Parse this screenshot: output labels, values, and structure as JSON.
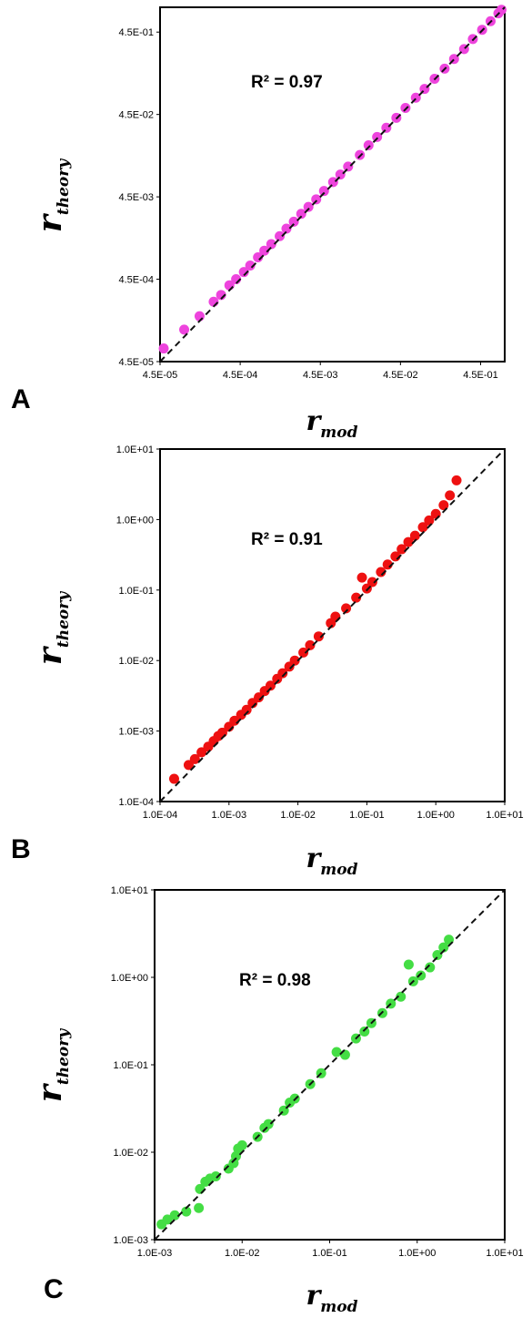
{
  "chart_data": [
    {
      "type": "scatter",
      "panel": "A",
      "annotation": "R² = 0.97",
      "xlabel": "r_mod",
      "ylabel": "r_theory",
      "xlim": [
        4.5e-05,
        0.9
      ],
      "ylim": [
        4.5e-05,
        0.9
      ],
      "log_x": true,
      "log_y": true,
      "x_ticks": [
        "4.5E-05",
        "4.5E-04",
        "4.5E-03",
        "4.5E-02",
        "4.5E-01"
      ],
      "y_ticks": [
        "4.5E-05",
        "4.5E-04",
        "4.5E-03",
        "4.5E-02",
        "4.5E-01"
      ],
      "reference_line": "y = x (dashed)",
      "marker_color": "#ee44dd",
      "grid": false,
      "points": [
        [
          5e-05,
          6.5e-05
        ],
        [
          9e-05,
          0.00011
        ],
        [
          0.00014,
          0.00016
        ],
        [
          0.00021,
          0.00024
        ],
        [
          0.00026,
          0.00029
        ],
        [
          0.00033,
          0.00038
        ],
        [
          0.0004,
          0.00045
        ],
        [
          0.0005,
          0.00055
        ],
        [
          0.0006,
          0.00066
        ],
        [
          0.00075,
          0.00083
        ],
        [
          0.0009,
          0.001
        ],
        [
          0.0011,
          0.0012
        ],
        [
          0.0014,
          0.0015
        ],
        [
          0.0017,
          0.00185
        ],
        [
          0.0021,
          0.00225
        ],
        [
          0.0026,
          0.0028
        ],
        [
          0.0032,
          0.0034
        ],
        [
          0.004,
          0.0042
        ],
        [
          0.005,
          0.0053
        ],
        [
          0.0065,
          0.0068
        ],
        [
          0.008,
          0.0084
        ],
        [
          0.01,
          0.0105
        ],
        [
          0.014,
          0.0145
        ],
        [
          0.018,
          0.019
        ],
        [
          0.023,
          0.024
        ],
        [
          0.03,
          0.031
        ],
        [
          0.04,
          0.041
        ],
        [
          0.052,
          0.054
        ],
        [
          0.07,
          0.072
        ],
        [
          0.09,
          0.092
        ],
        [
          0.12,
          0.122
        ],
        [
          0.16,
          0.162
        ],
        [
          0.21,
          0.212
        ],
        [
          0.28,
          0.28
        ],
        [
          0.36,
          0.37
        ],
        [
          0.47,
          0.48
        ],
        [
          0.6,
          0.61
        ],
        [
          0.75,
          0.76
        ],
        [
          0.82,
          0.84
        ]
      ]
    },
    {
      "type": "scatter",
      "panel": "B",
      "annotation": "R² = 0.91",
      "xlabel": "r_mod",
      "ylabel": "r_theory",
      "xlim": [
        0.0001,
        10
      ],
      "ylim": [
        0.0001,
        10
      ],
      "log_x": true,
      "log_y": true,
      "x_ticks": [
        "1.0E-04",
        "1.0E-03",
        "1.0E-02",
        "1.0E-01",
        "1.0E+00",
        "1.0E+01"
      ],
      "y_ticks": [
        "1.0E-04",
        "1.0E-03",
        "1.0E-02",
        "1.0E-01",
        "1.0E+00",
        "1.0E+01"
      ],
      "reference_line": "y = x (dashed)",
      "marker_color": "#ee1111",
      "grid": false,
      "points": [
        [
          0.00016,
          0.00021
        ],
        [
          0.00026,
          0.00033
        ],
        [
          0.00032,
          0.0004
        ],
        [
          0.0004,
          0.0005
        ],
        [
          0.0005,
          0.0006
        ],
        [
          0.0006,
          0.00072
        ],
        [
          0.0007,
          0.00085
        ],
        [
          0.0008,
          0.00095
        ],
        [
          0.001,
          0.00115
        ],
        [
          0.0012,
          0.0014
        ],
        [
          0.0015,
          0.0017
        ],
        [
          0.0018,
          0.002
        ],
        [
          0.0022,
          0.0025
        ],
        [
          0.0027,
          0.003
        ],
        [
          0.0033,
          0.0037
        ],
        [
          0.004,
          0.0044
        ],
        [
          0.005,
          0.0055
        ],
        [
          0.006,
          0.0066
        ],
        [
          0.0075,
          0.0082
        ],
        [
          0.009,
          0.01
        ],
        [
          0.012,
          0.013
        ],
        [
          0.015,
          0.0165
        ],
        [
          0.02,
          0.022
        ],
        [
          0.03,
          0.034
        ],
        [
          0.035,
          0.042
        ],
        [
          0.05,
          0.055
        ],
        [
          0.07,
          0.078
        ],
        [
          0.085,
          0.15
        ],
        [
          0.1,
          0.105
        ],
        [
          0.12,
          0.13
        ],
        [
          0.16,
          0.18
        ],
        [
          0.2,
          0.23
        ],
        [
          0.26,
          0.3
        ],
        [
          0.32,
          0.38
        ],
        [
          0.4,
          0.48
        ],
        [
          0.5,
          0.59
        ],
        [
          0.65,
          0.78
        ],
        [
          0.8,
          0.97
        ],
        [
          1.0,
          1.2
        ],
        [
          1.3,
          1.6
        ],
        [
          1.6,
          2.2
        ],
        [
          2.0,
          3.6
        ]
      ]
    },
    {
      "type": "scatter",
      "panel": "C",
      "annotation": "R² = 0.98",
      "xlabel": "r_mod",
      "ylabel": "r_theory",
      "xlim": [
        0.001,
        10
      ],
      "ylim": [
        0.001,
        10
      ],
      "log_x": true,
      "log_y": true,
      "x_ticks": [
        "1.0E-03",
        "1.0E-02",
        "1.0E-01",
        "1.0E+00",
        "1.0E+01"
      ],
      "y_ticks": [
        "1.0E-03",
        "1.0E-02",
        "1.0E-01",
        "1.0E+00",
        "1.0E+01"
      ],
      "reference_line": "y = x (dashed)",
      "marker_color": "#44dd44",
      "grid": false,
      "points": [
        [
          0.0012,
          0.0015
        ],
        [
          0.0014,
          0.0017
        ],
        [
          0.0017,
          0.0019
        ],
        [
          0.0023,
          0.0021
        ],
        [
          0.0032,
          0.0023
        ],
        [
          0.0033,
          0.0038
        ],
        [
          0.0038,
          0.0046
        ],
        [
          0.0043,
          0.005
        ],
        [
          0.005,
          0.0053
        ],
        [
          0.007,
          0.0065
        ],
        [
          0.008,
          0.0075
        ],
        [
          0.0085,
          0.009
        ],
        [
          0.009,
          0.011
        ],
        [
          0.01,
          0.012
        ],
        [
          0.015,
          0.015
        ],
        [
          0.018,
          0.019
        ],
        [
          0.02,
          0.021
        ],
        [
          0.03,
          0.03
        ],
        [
          0.035,
          0.037
        ],
        [
          0.04,
          0.041
        ],
        [
          0.06,
          0.06
        ],
        [
          0.08,
          0.08
        ],
        [
          0.12,
          0.14
        ],
        [
          0.15,
          0.13
        ],
        [
          0.2,
          0.2
        ],
        [
          0.25,
          0.24
        ],
        [
          0.3,
          0.3
        ],
        [
          0.4,
          0.39
        ],
        [
          0.5,
          0.5
        ],
        [
          0.65,
          0.6
        ],
        [
          0.8,
          1.4
        ],
        [
          0.9,
          0.9
        ],
        [
          1.1,
          1.05
        ],
        [
          1.4,
          1.3
        ],
        [
          1.7,
          1.8
        ],
        [
          2.0,
          2.2
        ],
        [
          2.3,
          2.7
        ]
      ]
    }
  ]
}
